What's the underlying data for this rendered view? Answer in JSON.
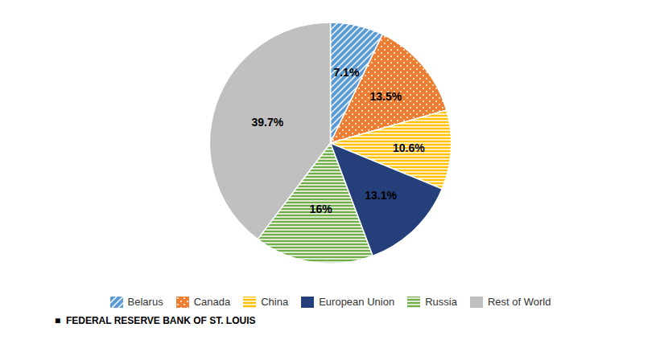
{
  "chart_data": {
    "type": "pie",
    "categories": [
      "Belarus",
      "Canada",
      "China",
      "European Union",
      "Russia",
      "Rest of World"
    ],
    "values": [
      7.1,
      13.5,
      10.6,
      13.1,
      16.0,
      39.7
    ],
    "value_labels": [
      "7.1%",
      "13.5%",
      "10.6%",
      "13.1%",
      "16%",
      "39.7%"
    ],
    "colors": [
      "#5B9BD5",
      "#ED7D31",
      "#FFC000",
      "#243F7A",
      "#70AD47",
      "#C0C0C0"
    ],
    "data_labels": true,
    "legend": "bottom",
    "annotations": [
      "■  FEDERAL RESERVE BANK OF ST. LOUIS"
    ]
  }
}
